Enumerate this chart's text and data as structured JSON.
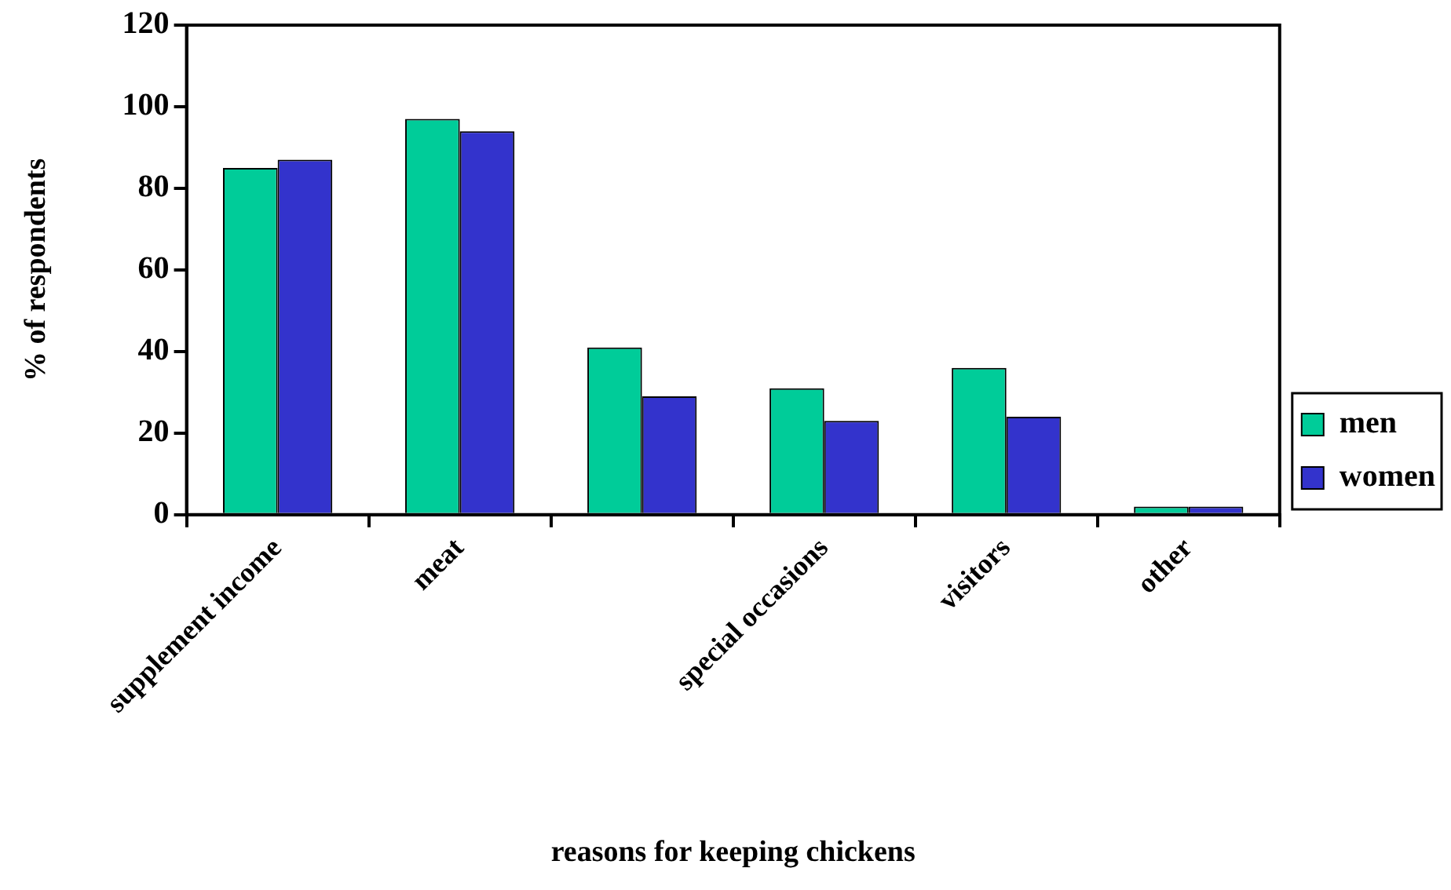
{
  "chart_data": {
    "type": "bar",
    "xlabel": "reasons for keeping chickens",
    "ylabel": "% of respondents",
    "categories": [
      "supplement income",
      "meat",
      null,
      "special occasions",
      "visitors",
      "other"
    ],
    "series": [
      {
        "name": "men",
        "color": "#00cc99",
        "values": [
          85,
          97,
          41,
          31,
          36,
          2
        ]
      },
      {
        "name": "women",
        "color": "#3333cc",
        "values": [
          87,
          94,
          29,
          23,
          24,
          2
        ]
      }
    ],
    "ylim": [
      0,
      120
    ],
    "yticks": [
      0,
      20,
      40,
      60,
      80,
      100,
      120
    ],
    "grid": false,
    "legend": "right"
  }
}
